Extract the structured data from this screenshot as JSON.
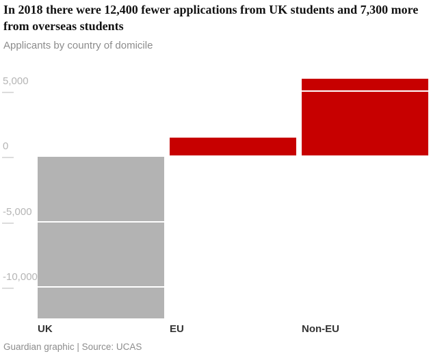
{
  "header": {
    "title": "In 2018 there were 12,400 fewer applications from UK students and 7,300 more from overseas students",
    "subtitle": "Applicants by country of domicile"
  },
  "chart_data": {
    "type": "bar",
    "categories": [
      "UK",
      "EU",
      "Non-EU"
    ],
    "values": [
      -12400,
      1400,
      5900
    ],
    "bar_colors": [
      "#b3b3b3",
      "#c70000",
      "#c70000"
    ],
    "yticks": [
      {
        "value": 5000,
        "label": "5,000"
      },
      {
        "value": 0,
        "label": "0"
      },
      {
        "value": -5000,
        "label": "-5,000"
      },
      {
        "value": -10000,
        "label": "-10,000"
      }
    ],
    "ylim": [
      -13000,
      6000
    ],
    "title": "Applicants by country of domicile",
    "xlabel": "",
    "ylabel": "",
    "legend": "none",
    "grid": "white-gridlines-over-bars",
    "accent_color": "#c70000",
    "neutral_color": "#b3b3b3"
  },
  "footer": {
    "credit": "Guardian graphic | Source: UCAS"
  }
}
